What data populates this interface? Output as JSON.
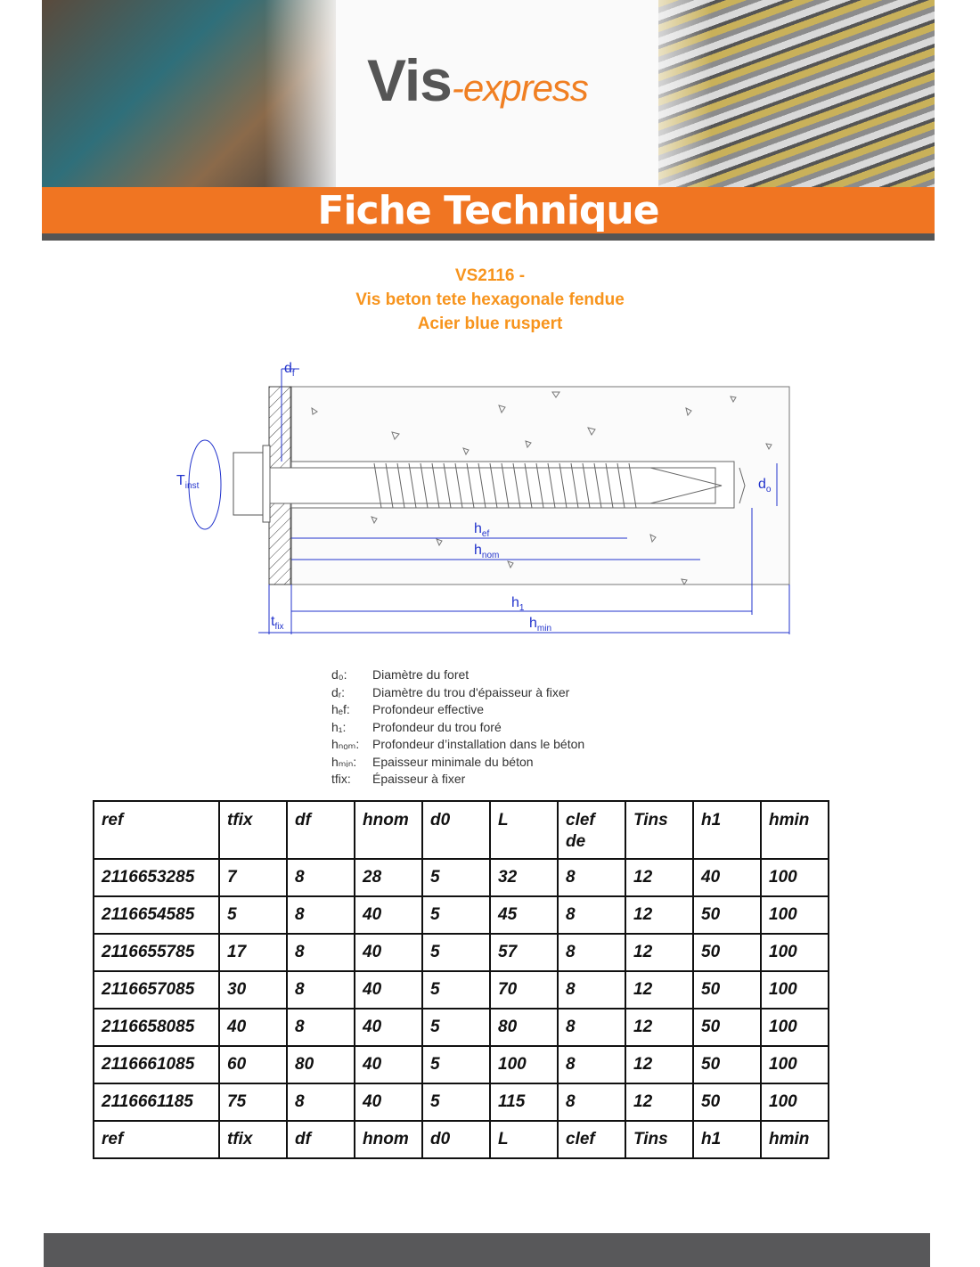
{
  "header": {
    "logo_main": "Vis",
    "logo_sub": "-express",
    "band_title": "Fiche Technique"
  },
  "product": {
    "line1": "VS2116 -",
    "line2": "Vis beton tete hexagonale fendue",
    "line3": "Acier blue ruspert"
  },
  "diagram_labels": {
    "df": "d",
    "df_sub": "f",
    "tinst": "T",
    "tinst_sub": "inst",
    "do": "d",
    "do_sub": "o",
    "hef": "h",
    "hef_sub": "ef",
    "hnom": "h",
    "hnom_sub": "nom",
    "h1": "h",
    "h1_sub": "1",
    "hmin": "h",
    "hmin_sub": "min",
    "tfix": "t",
    "tfix_sub": "fix"
  },
  "legend": [
    {
      "sym": "d₀:",
      "desc": "Diamètre du foret"
    },
    {
      "sym": "dᵣ:",
      "desc": "Diamètre du trou d'épaisseur à fixer"
    },
    {
      "sym": "hₑf:",
      "desc": "Profondeur effective"
    },
    {
      "sym": "h₁:",
      "desc": "Profondeur du trou foré"
    },
    {
      "sym": "hₙₒₘ:",
      "desc": "Profondeur d’installation dans le béton"
    },
    {
      "sym": "hₘᵢₙ:",
      "desc": "Epaisseur minimale du béton"
    },
    {
      "sym": "tfix:",
      "desc": "Épaisseur à fixer"
    }
  ],
  "table": {
    "header": [
      "ref",
      "tfix",
      "df",
      "hnom",
      "d0",
      "L",
      "clef de",
      "Tins",
      "h1",
      "hmin"
    ],
    "rows": [
      [
        "2116653285",
        "7",
        "8",
        "28",
        "5",
        "32",
        "8",
        "12",
        "40",
        "100"
      ],
      [
        "2116654585",
        "5",
        "8",
        "40",
        "5",
        "45",
        "8",
        "12",
        "50",
        "100"
      ],
      [
        "2116655785",
        "17",
        "8",
        "40",
        "5",
        "57",
        "8",
        "12",
        "50",
        "100"
      ],
      [
        "2116657085",
        "30",
        "8",
        "40",
        "5",
        "70",
        "8",
        "12",
        "50",
        "100"
      ],
      [
        "2116658085",
        "40",
        "8",
        "40",
        "5",
        "80",
        "8",
        "12",
        "50",
        "100"
      ],
      [
        "2116661085",
        "60",
        "80",
        "40",
        "5",
        "100",
        "8",
        "12",
        "50",
        "100"
      ],
      [
        "2116661185",
        "75",
        "8",
        "40",
        "5",
        "115",
        "8",
        "12",
        "50",
        "100"
      ]
    ],
    "footer": [
      "ref",
      "tfix",
      "df",
      "hnom",
      "d0",
      "L",
      "clef",
      "Tins",
      "h1",
      "hmin"
    ]
  },
  "colors": {
    "orange": "#f07522",
    "title": "#f7941d",
    "dim_blue": "#2233cc",
    "footer": "#58585a"
  }
}
